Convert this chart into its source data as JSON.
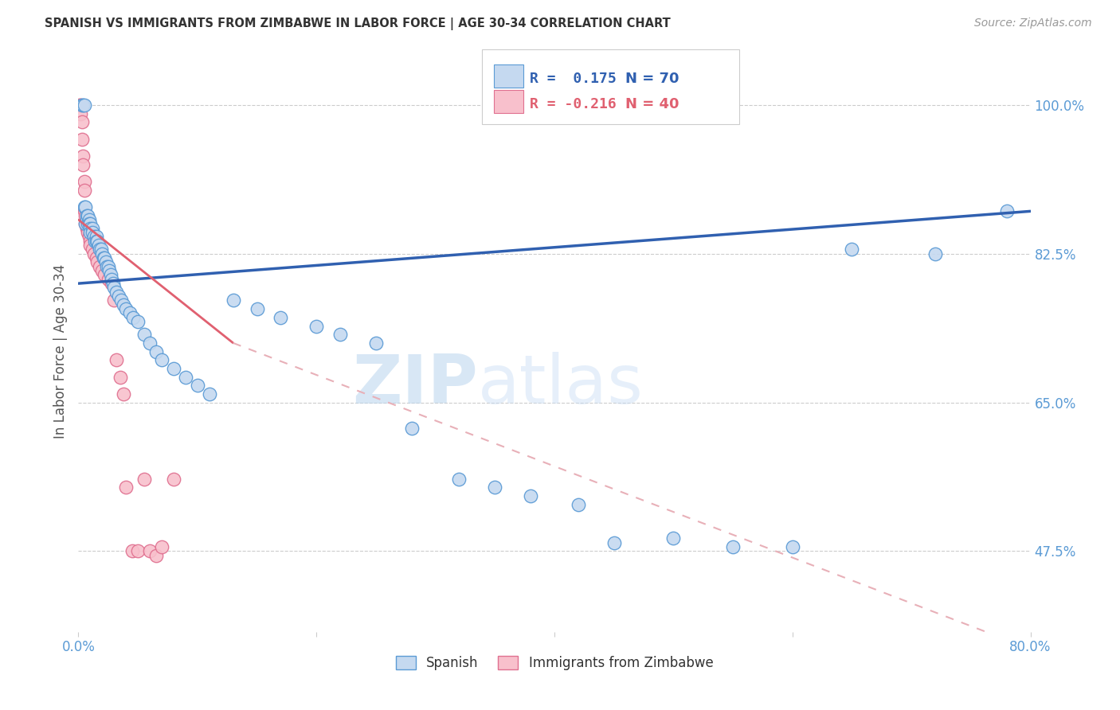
{
  "title": "SPANISH VS IMMIGRANTS FROM ZIMBABWE IN LABOR FORCE | AGE 30-34 CORRELATION CHART",
  "source": "Source: ZipAtlas.com",
  "ylabel": "In Labor Force | Age 30-34",
  "ytick_labels": [
    "100.0%",
    "82.5%",
    "65.0%",
    "47.5%"
  ],
  "ytick_values": [
    1.0,
    0.825,
    0.65,
    0.475
  ],
  "watermark_zip": "ZIP",
  "watermark_atlas": "atlas",
  "legend_R1": "R =  0.175",
  "legend_N1": "N = 70",
  "legend_R2": "R = -0.216",
  "legend_N2": "N = 40",
  "blue_fill": "#c5d9f0",
  "blue_edge": "#5b9bd5",
  "pink_fill": "#f8c0cc",
  "pink_edge": "#e07090",
  "trendline_blue": "#3060b0",
  "trendline_pink": "#e06070",
  "trendline_pink_dash": "#e8b0b8",
  "axis_color": "#5b9bd5",
  "grid_color": "#cccccc",
  "blue_scatter_x": [
    0.003,
    0.004,
    0.005,
    0.005,
    0.006,
    0.006,
    0.007,
    0.007,
    0.008,
    0.008,
    0.009,
    0.009,
    0.01,
    0.01,
    0.01,
    0.012,
    0.012,
    0.013,
    0.014,
    0.015,
    0.015,
    0.016,
    0.017,
    0.018,
    0.019,
    0.02,
    0.021,
    0.022,
    0.023,
    0.024,
    0.025,
    0.026,
    0.027,
    0.028,
    0.029,
    0.03,
    0.032,
    0.034,
    0.036,
    0.038,
    0.04,
    0.043,
    0.046,
    0.05,
    0.055,
    0.06,
    0.065,
    0.07,
    0.08,
    0.09,
    0.1,
    0.11,
    0.13,
    0.15,
    0.17,
    0.2,
    0.22,
    0.25,
    0.28,
    0.32,
    0.35,
    0.38,
    0.42,
    0.45,
    0.5,
    0.55,
    0.6,
    0.65,
    0.72,
    0.78
  ],
  "blue_scatter_y": [
    1.0,
    1.0,
    1.0,
    0.88,
    0.88,
    0.86,
    0.87,
    0.865,
    0.87,
    0.86,
    0.865,
    0.86,
    0.86,
    0.855,
    0.85,
    0.855,
    0.85,
    0.845,
    0.84,
    0.845,
    0.84,
    0.84,
    0.835,
    0.83,
    0.83,
    0.825,
    0.82,
    0.82,
    0.815,
    0.81,
    0.81,
    0.805,
    0.8,
    0.795,
    0.79,
    0.785,
    0.78,
    0.775,
    0.77,
    0.765,
    0.76,
    0.755,
    0.75,
    0.745,
    0.73,
    0.72,
    0.71,
    0.7,
    0.69,
    0.68,
    0.67,
    0.66,
    0.77,
    0.76,
    0.75,
    0.74,
    0.73,
    0.72,
    0.62,
    0.56,
    0.55,
    0.54,
    0.53,
    0.485,
    0.49,
    0.48,
    0.48,
    0.83,
    0.825,
    0.875
  ],
  "pink_scatter_x": [
    0.001,
    0.002,
    0.002,
    0.003,
    0.003,
    0.004,
    0.004,
    0.005,
    0.005,
    0.005,
    0.006,
    0.006,
    0.007,
    0.007,
    0.008,
    0.008,
    0.009,
    0.01,
    0.01,
    0.012,
    0.013,
    0.015,
    0.016,
    0.018,
    0.02,
    0.022,
    0.025,
    0.028,
    0.03,
    0.032,
    0.035,
    0.038,
    0.04,
    0.045,
    0.05,
    0.055,
    0.06,
    0.065,
    0.07,
    0.08
  ],
  "pink_scatter_y": [
    1.0,
    1.0,
    0.99,
    0.98,
    0.96,
    0.94,
    0.93,
    0.91,
    0.9,
    0.875,
    0.87,
    0.86,
    0.86,
    0.855,
    0.855,
    0.85,
    0.845,
    0.84,
    0.835,
    0.83,
    0.825,
    0.82,
    0.815,
    0.81,
    0.805,
    0.8,
    0.795,
    0.79,
    0.77,
    0.7,
    0.68,
    0.66,
    0.55,
    0.475,
    0.475,
    0.56,
    0.475,
    0.47,
    0.48,
    0.56
  ],
  "xlim": [
    0.0,
    0.8
  ],
  "ylim": [
    0.38,
    1.04
  ],
  "blue_trend": [
    0.0,
    0.79,
    0.8,
    0.875
  ],
  "pink_trend_solid": [
    0.0,
    0.865,
    0.13,
    0.72
  ],
  "pink_trend_dash": [
    0.13,
    0.72,
    0.8,
    0.36
  ]
}
